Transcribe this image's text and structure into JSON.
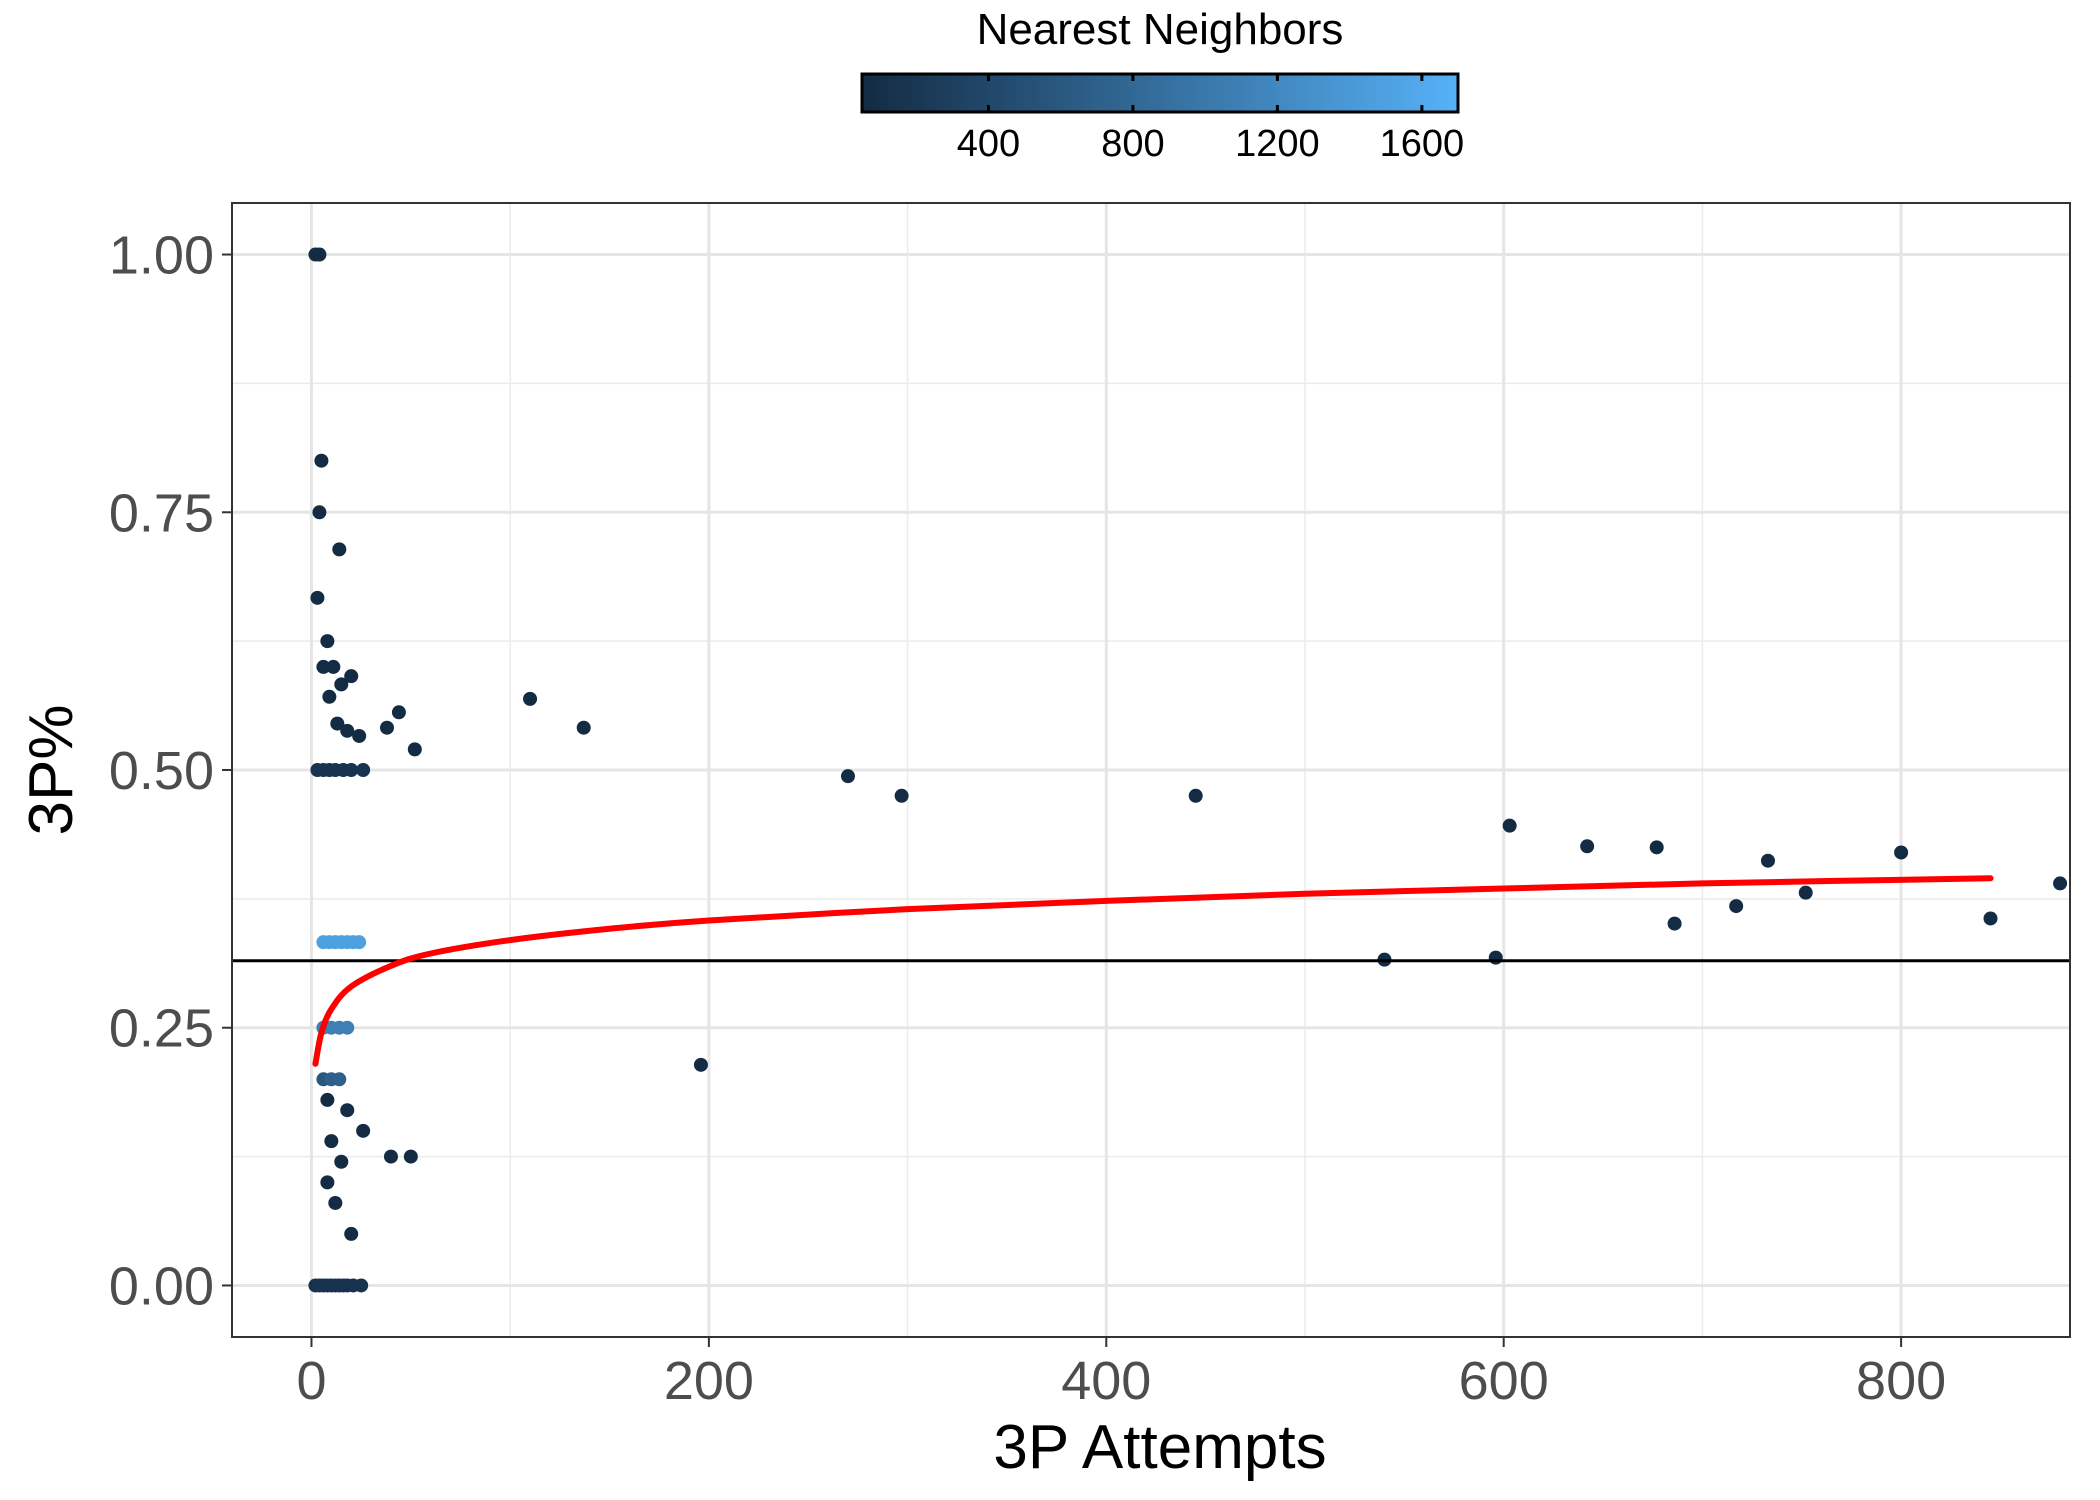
{
  "chart_data": {
    "type": "scatter",
    "title": "",
    "xlabel": "3P Attempts",
    "ylabel": "3P%",
    "xlim": [
      -40,
      885
    ],
    "ylim": [
      -0.05,
      1.05
    ],
    "x_ticks": [
      0,
      200,
      400,
      600,
      800
    ],
    "x_tick_labels": [
      "0",
      "200",
      "400",
      "600",
      "800"
    ],
    "y_ticks": [
      0,
      0.25,
      0.5,
      0.75,
      1
    ],
    "y_tick_labels": [
      "0.00",
      "0.25",
      "0.50",
      "0.75",
      "1.00"
    ],
    "grid": true,
    "legend": {
      "title": "Nearest Neighbors",
      "placement": "top",
      "range": [
        50,
        1700
      ],
      "ticks": [
        400,
        800,
        1200,
        1600
      ],
      "tick_labels": [
        "400",
        "800",
        "1200",
        "1600"
      ],
      "color_low": "#132B43",
      "color_high": "#56B1F7"
    },
    "reference_line": {
      "y": 0.315,
      "color": "#000000"
    },
    "fit_curve": {
      "color": "#ff0000",
      "points": [
        [
          2,
          0.215
        ],
        [
          5,
          0.245
        ],
        [
          10,
          0.268
        ],
        [
          20,
          0.29
        ],
        [
          40,
          0.31
        ],
        [
          60,
          0.322
        ],
        [
          100,
          0.335
        ],
        [
          150,
          0.346
        ],
        [
          200,
          0.354
        ],
        [
          300,
          0.365
        ],
        [
          400,
          0.373
        ],
        [
          500,
          0.38
        ],
        [
          600,
          0.385
        ],
        [
          700,
          0.39
        ],
        [
          845,
          0.395
        ]
      ]
    },
    "series": [
      {
        "points": [
          [
            2,
            1.0,
            40
          ],
          [
            4,
            1.0,
            40
          ],
          [
            5,
            0.8,
            40
          ],
          [
            4,
            0.75,
            40
          ],
          [
            14,
            0.714,
            40
          ],
          [
            3,
            0.667,
            40
          ],
          [
            8,
            0.625,
            40
          ],
          [
            6,
            0.6,
            40
          ],
          [
            11,
            0.6,
            40
          ],
          [
            9,
            0.571,
            40
          ],
          [
            15,
            0.583,
            40
          ],
          [
            20,
            0.591,
            40
          ],
          [
            13,
            0.545,
            40
          ],
          [
            18,
            0.538,
            40
          ],
          [
            24,
            0.533,
            40
          ],
          [
            38,
            0.541,
            40
          ],
          [
            44,
            0.556,
            40
          ],
          [
            52,
            0.52,
            40
          ],
          [
            110,
            0.569,
            40
          ],
          [
            137,
            0.541,
            40
          ],
          [
            3,
            0.5,
            150
          ],
          [
            6,
            0.5,
            150
          ],
          [
            9,
            0.5,
            150
          ],
          [
            12,
            0.5,
            150
          ],
          [
            16,
            0.5,
            150
          ],
          [
            20,
            0.5,
            150
          ],
          [
            26,
            0.5,
            150
          ],
          [
            2,
            0.0,
            150
          ],
          [
            4,
            0.0,
            150
          ],
          [
            6,
            0.0,
            150
          ],
          [
            8,
            0.0,
            150
          ],
          [
            10,
            0.0,
            150
          ],
          [
            12,
            0.0,
            150
          ],
          [
            14,
            0.0,
            150
          ],
          [
            16,
            0.0,
            150
          ],
          [
            18,
            0.0,
            150
          ],
          [
            21,
            0.0,
            150
          ],
          [
            25,
            0.0,
            150
          ],
          [
            20,
            0.05,
            40
          ],
          [
            12,
            0.08,
            40
          ],
          [
            8,
            0.1,
            40
          ],
          [
            15,
            0.12,
            60
          ],
          [
            40,
            0.125,
            40
          ],
          [
            50,
            0.125,
            40
          ],
          [
            10,
            0.14,
            60
          ],
          [
            26,
            0.15,
            60
          ],
          [
            18,
            0.17,
            80
          ],
          [
            8,
            0.18,
            60
          ],
          [
            196,
            0.214,
            40
          ],
          [
            270,
            0.494,
            40
          ],
          [
            297,
            0.475,
            40
          ],
          [
            445,
            0.475,
            40
          ],
          [
            603,
            0.446,
            40
          ],
          [
            642,
            0.426,
            40
          ],
          [
            677,
            0.425,
            40
          ],
          [
            800,
            0.42,
            40
          ],
          [
            845,
            0.356,
            40
          ],
          [
            596,
            0.318,
            40
          ],
          [
            540,
            0.316,
            40
          ],
          [
            880,
            0.39,
            40
          ],
          [
            733,
            0.412,
            40
          ],
          [
            752,
            0.381,
            40
          ],
          [
            717,
            0.368,
            40
          ],
          [
            686,
            0.351,
            40
          ],
          [
            6,
            0.333,
            1500
          ],
          [
            9,
            0.333,
            1500
          ],
          [
            12,
            0.333,
            1500
          ],
          [
            15,
            0.333,
            1500
          ],
          [
            18,
            0.333,
            1500
          ],
          [
            21,
            0.333,
            1500
          ],
          [
            24,
            0.333,
            1500
          ],
          [
            6,
            0.25,
            1100
          ],
          [
            10,
            0.25,
            1100
          ],
          [
            14,
            0.25,
            1100
          ],
          [
            18,
            0.25,
            1100
          ],
          [
            6,
            0.2,
            600
          ],
          [
            10,
            0.2,
            700
          ],
          [
            14,
            0.2,
            700
          ]
        ]
      }
    ]
  }
}
